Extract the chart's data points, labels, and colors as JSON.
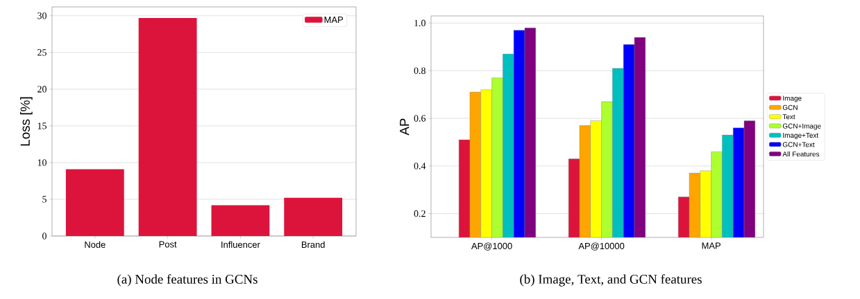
{
  "chart_data": [
    {
      "type": "bar",
      "categories": [
        "Node",
        "Post",
        "Influencer",
        "Brand"
      ],
      "ylabel": "Loss [%]",
      "ylim": [
        0,
        31.2
      ],
      "yticks": [
        0,
        5,
        10,
        15,
        20,
        25,
        30
      ],
      "grid": "y",
      "legend": "top right",
      "series": [
        {
          "name": "MAP",
          "color": "#dc143c",
          "values": [
            9.1,
            29.7,
            4.2,
            5.2
          ]
        }
      ],
      "annotations": [
        "(a) Node features in GCNs"
      ]
    },
    {
      "type": "bar",
      "categories": [
        "AP@1000",
        "AP@10000",
        "MAP"
      ],
      "ylabel": "AP",
      "ylim": [
        0.1,
        1.03
      ],
      "yticks": [
        0.2,
        0.4,
        0.6,
        0.8,
        {
          "value": 1.0,
          "label": "1.0"
        }
      ],
      "grid": "y",
      "legend": "right",
      "series": [
        {
          "name": "Image",
          "color": "#dc143c",
          "values": [
            0.51,
            0.43,
            0.27
          ]
        },
        {
          "name": "GCN",
          "color": "#ffa500",
          "values": [
            0.71,
            0.57,
            0.37
          ]
        },
        {
          "name": "Text",
          "color": "#ffff00",
          "values": [
            0.72,
            0.59,
            0.38
          ]
        },
        {
          "name": "GCN+Image",
          "color": "#adff2f",
          "values": [
            0.77,
            0.67,
            0.46
          ]
        },
        {
          "name": "Image+Text",
          "color": "#00bfbf",
          "values": [
            0.87,
            0.81,
            0.53
          ]
        },
        {
          "name": "GCN+Text",
          "color": "#0000ff",
          "values": [
            0.97,
            0.91,
            0.56
          ]
        },
        {
          "name": "All Features",
          "color": "#800080",
          "values": [
            0.98,
            0.94,
            0.59
          ]
        }
      ],
      "annotations": [
        "(b) Image, Text, and GCN features"
      ]
    }
  ]
}
